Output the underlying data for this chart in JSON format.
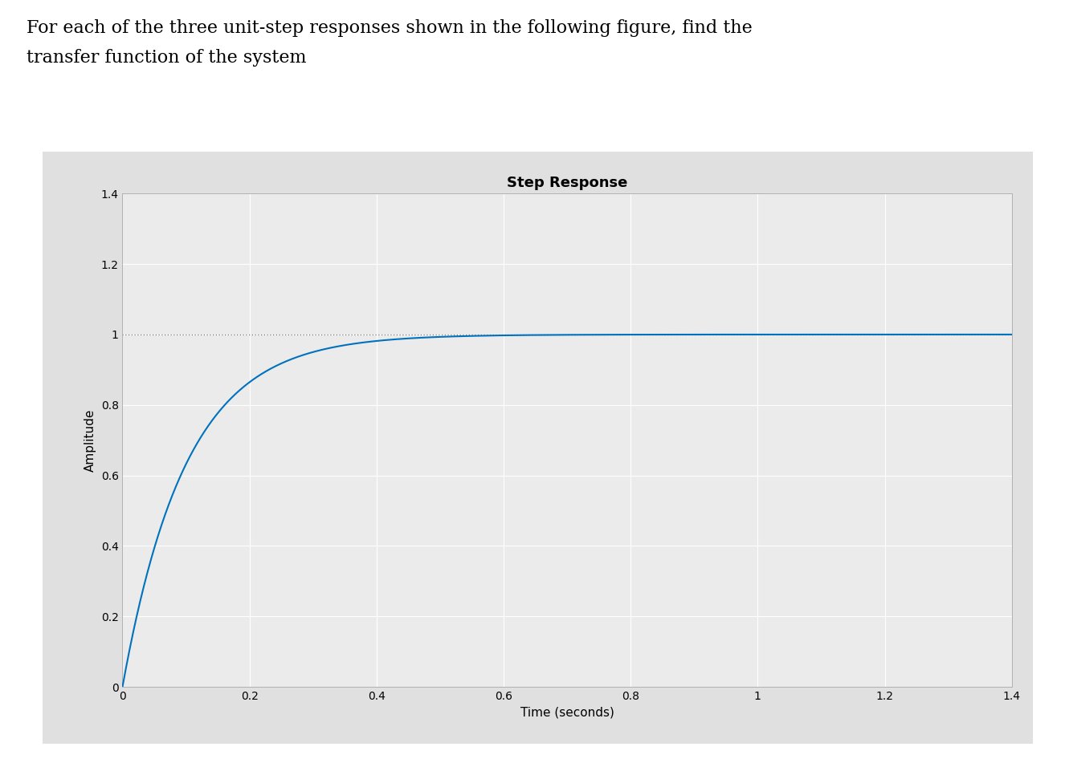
{
  "title": "Step Response",
  "xlabel": "Time (seconds)",
  "ylabel": "Amplitude",
  "xlim": [
    0,
    1.4
  ],
  "ylim": [
    0,
    1.4
  ],
  "xticks": [
    0,
    0.2,
    0.4,
    0.6,
    0.8,
    1.0,
    1.2,
    1.4
  ],
  "yticks": [
    0,
    0.2,
    0.4,
    0.6,
    0.8,
    1.0,
    1.2,
    1.4
  ],
  "line_color": "#0072BD",
  "dotted_line_y": 1.0,
  "dotted_line_color": "#777777",
  "plot_bg_color": "#EBEBEB",
  "outer_bg_color": "#E0E0E0",
  "grid_color": "#FFFFFF",
  "tau": 0.1,
  "title_fontsize": 13,
  "label_fontsize": 11,
  "tick_fontsize": 10,
  "text_line1": "For each of the three unit-step responses shown in the following figure, find the",
  "text_line2": "transfer function of the system",
  "text_fontsize": 16,
  "fig_width": 13.26,
  "fig_height": 9.46
}
